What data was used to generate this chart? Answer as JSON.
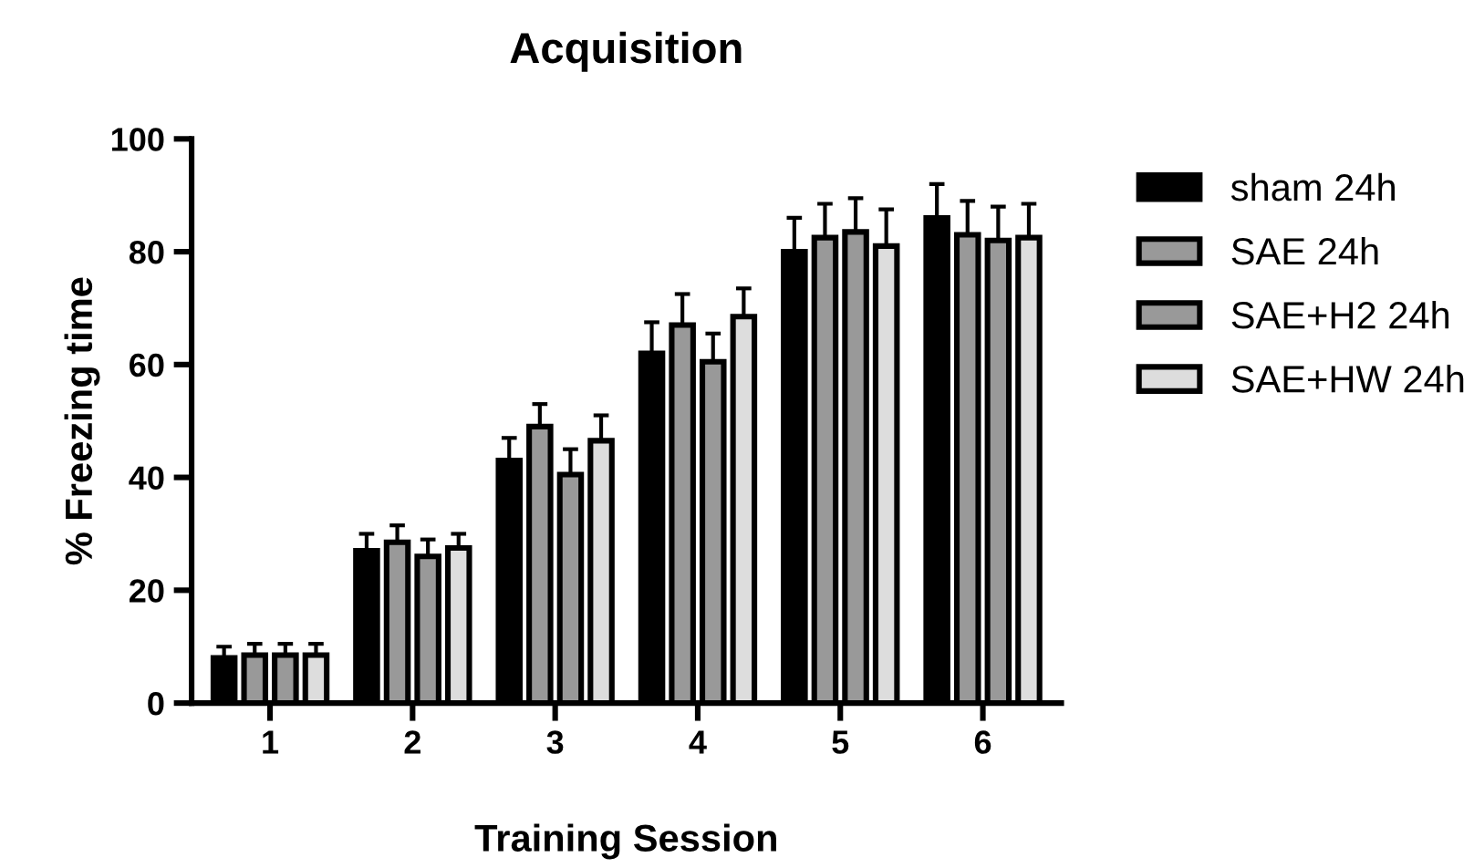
{
  "chart_data": {
    "type": "bar",
    "title": "Acquisition",
    "xlabel": "Training Session",
    "ylabel": "% Freezing time",
    "categories": [
      "1",
      "2",
      "3",
      "4",
      "5",
      "6"
    ],
    "series": [
      {
        "name": "sham 24h",
        "color": "#000000",
        "values": [
          8,
          27,
          43,
          62,
          80,
          86
        ],
        "errors": [
          [
            8,
            10
          ],
          [
            27,
            30
          ],
          [
            43,
            47
          ],
          [
            62,
            67.5
          ],
          [
            80,
            86
          ],
          [
            86,
            92
          ]
        ]
      },
      {
        "name": "SAE 24h",
        "color": "#999999",
        "values": [
          8.5,
          28.5,
          49,
          67,
          82.5,
          83
        ],
        "errors": [
          [
            8.5,
            10.5
          ],
          [
            28.5,
            31.5
          ],
          [
            49,
            53
          ],
          [
            67,
            72.5
          ],
          [
            82.5,
            88.5
          ],
          [
            83,
            89
          ]
        ]
      },
      {
        "name": "SAE+H2 24h",
        "color": "#999999",
        "values": [
          8.5,
          26,
          40.5,
          60.5,
          83.5,
          82
        ],
        "errors": [
          [
            8.5,
            10.5
          ],
          [
            26,
            29
          ],
          [
            40.5,
            45
          ],
          [
            60.5,
            65.5
          ],
          [
            83.5,
            89.5
          ],
          [
            82,
            88
          ]
        ]
      },
      {
        "name": "SAE+HW 24h",
        "color": "#dddddd",
        "values": [
          8.5,
          27.5,
          46.5,
          68.5,
          81,
          82.5
        ],
        "errors": [
          [
            8.5,
            10.5
          ],
          [
            27.5,
            30
          ],
          [
            46.5,
            51
          ],
          [
            68.5,
            73.5
          ],
          [
            81,
            87.5
          ],
          [
            82.5,
            88.5
          ]
        ]
      }
    ],
    "ylim": [
      0,
      100
    ],
    "yticks": [
      0,
      20,
      40,
      60,
      80,
      100
    ],
    "grid": false,
    "legend": "right"
  }
}
